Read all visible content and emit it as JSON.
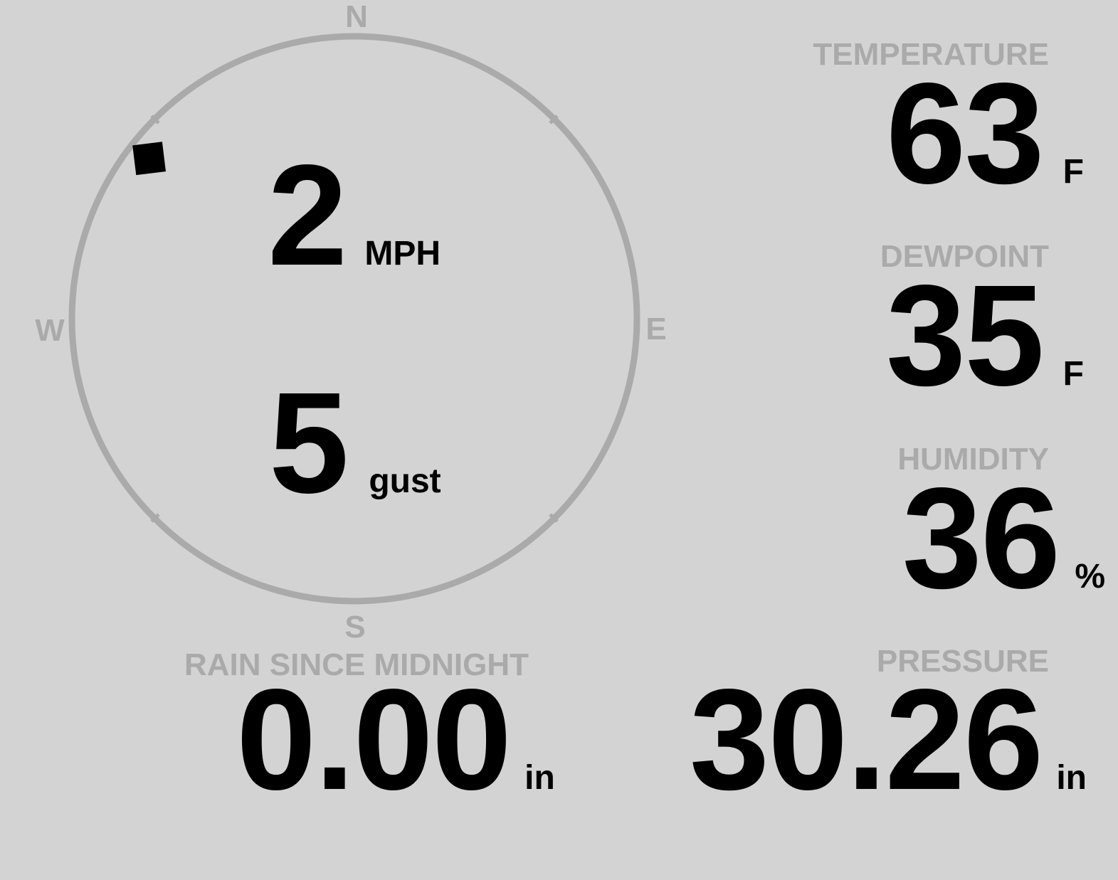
{
  "wind": {
    "speed": "2",
    "speed_unit": "MPH",
    "gust": "5",
    "gust_unit": "gust",
    "direction_deg": 308,
    "compass": {
      "n": "N",
      "e": "E",
      "s": "S",
      "w": "W"
    }
  },
  "temperature": {
    "label": "TEMPERATURE",
    "value": "63",
    "unit": "F"
  },
  "dewpoint": {
    "label": "DEWPOINT",
    "value": "35",
    "unit": "F"
  },
  "humidity": {
    "label": "HUMIDITY",
    "value": "36",
    "unit": "%"
  },
  "rain": {
    "label": "RAIN SINCE MIDNIGHT",
    "value": "0.00",
    "unit": "in"
  },
  "pressure": {
    "label": "PRESSURE",
    "value": "30.26",
    "unit": "in"
  },
  "colors": {
    "background": "#d3d3d3",
    "muted": "#aaaaaa",
    "value": "#000000"
  }
}
